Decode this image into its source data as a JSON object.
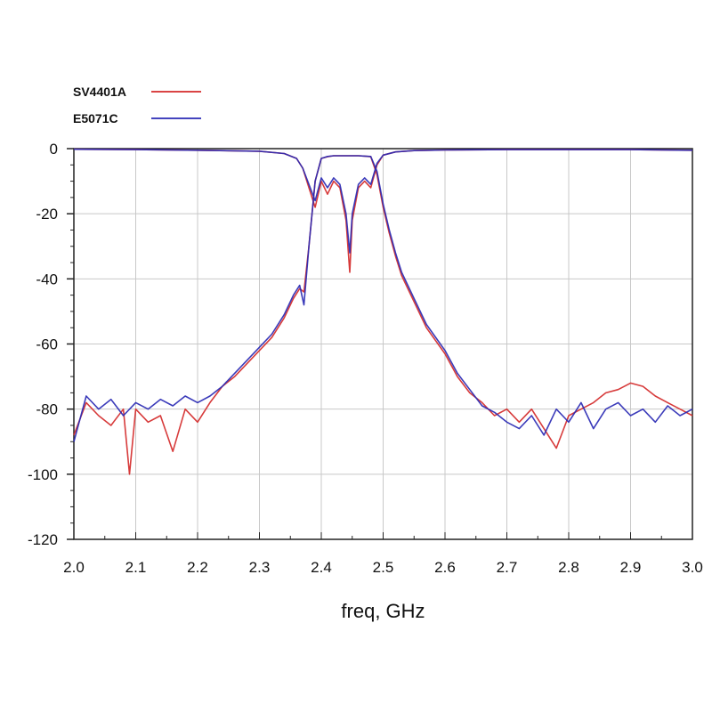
{
  "chart_data": {
    "type": "line",
    "title": "",
    "xlabel": "freq, GHz",
    "ylabel": "",
    "xlim": [
      2.0,
      3.0
    ],
    "ylim": [
      -120,
      0
    ],
    "x_ticks": [
      2.0,
      2.1,
      2.2,
      2.3,
      2.4,
      2.5,
      2.6,
      2.7,
      2.8,
      2.9,
      3.0
    ],
    "x_tick_labels": [
      "2.0",
      "2.1",
      "2.2",
      "2.3",
      "2.4",
      "2.5",
      "2.6",
      "2.7",
      "2.8",
      "2.9",
      "3.0"
    ],
    "y_ticks": [
      0,
      -20,
      -40,
      -60,
      -80,
      -100,
      -120
    ],
    "y_tick_labels": [
      "0",
      "-20",
      "-40",
      "-60",
      "-80",
      "-100",
      "-120"
    ],
    "grid": true,
    "legend_position": "top-left",
    "series": [
      {
        "name": "SV4401A",
        "color": "#d42a2a",
        "traces": [
          {
            "role": "transmission",
            "x": [
              2.0,
              2.02,
              2.04,
              2.06,
              2.08,
              2.09,
              2.1,
              2.12,
              2.14,
              2.16,
              2.18,
              2.2,
              2.22,
              2.24,
              2.26,
              2.28,
              2.3,
              2.32,
              2.34,
              2.355,
              2.365,
              2.372,
              2.38,
              2.39,
              2.4,
              2.41,
              2.42,
              2.43,
              2.44,
              2.45,
              2.46,
              2.47,
              2.48,
              2.49,
              2.5,
              2.51,
              2.52,
              2.53,
              2.55,
              2.57,
              2.6,
              2.62,
              2.64,
              2.66,
              2.68,
              2.7,
              2.72,
              2.74,
              2.76,
              2.78,
              2.8,
              2.82,
              2.84,
              2.86,
              2.88,
              2.9,
              2.92,
              2.94,
              2.96,
              2.98,
              3.0
            ],
            "y": [
              -88,
              -78,
              -82,
              -85,
              -80,
              -100,
              -80,
              -84,
              -82,
              -93,
              -80,
              -84,
              -78,
              -73,
              -70,
              -66,
              -62,
              -58,
              -52,
              -46,
              -43,
              -44,
              -30,
              -10,
              -3,
              -2.5,
              -2.2,
              -2.2,
              -2.2,
              -2.2,
              -2.2,
              -2.3,
              -2.5,
              -8,
              -18,
              -26,
              -33,
              -39,
              -47,
              -55,
              -63,
              -70,
              -75,
              -78,
              -82,
              -80,
              -84,
              -80,
              -86,
              -92,
              -82,
              -80,
              -78,
              -75,
              -74,
              -72,
              -73,
              -76,
              -78,
              -80,
              -82
            ]
          },
          {
            "role": "reflection",
            "x": [
              2.0,
              2.1,
              2.2,
              2.3,
              2.34,
              2.36,
              2.37,
              2.38,
              2.39,
              2.4,
              2.41,
              2.42,
              2.43,
              2.44,
              2.446,
              2.45,
              2.46,
              2.47,
              2.48,
              2.49,
              2.5,
              2.52,
              2.55,
              2.6,
              2.7,
              2.8,
              2.9,
              3.0
            ],
            "y": [
              -0.2,
              -0.3,
              -0.5,
              -0.8,
              -1.5,
              -3,
              -6,
              -12,
              -18,
              -10,
              -14,
              -10,
              -12,
              -22,
              -38,
              -22,
              -12,
              -10,
              -12,
              -5,
              -2,
              -1,
              -0.6,
              -0.4,
              -0.3,
              -0.3,
              -0.3,
              -0.5
            ]
          }
        ]
      },
      {
        "name": "E5071C",
        "color": "#2a2ab4",
        "traces": [
          {
            "role": "transmission",
            "x": [
              2.0,
              2.02,
              2.04,
              2.06,
              2.08,
              2.1,
              2.12,
              2.14,
              2.16,
              2.18,
              2.2,
              2.22,
              2.24,
              2.26,
              2.28,
              2.3,
              2.32,
              2.34,
              2.355,
              2.365,
              2.372,
              2.38,
              2.39,
              2.4,
              2.41,
              2.42,
              2.43,
              2.44,
              2.45,
              2.46,
              2.47,
              2.48,
              2.49,
              2.5,
              2.51,
              2.52,
              2.53,
              2.55,
              2.57,
              2.6,
              2.62,
              2.64,
              2.66,
              2.68,
              2.7,
              2.72,
              2.74,
              2.76,
              2.78,
              2.8,
              2.82,
              2.84,
              2.86,
              2.88,
              2.9,
              2.92,
              2.94,
              2.96,
              2.98,
              3.0
            ],
            "y": [
              -90,
              -76,
              -80,
              -77,
              -82,
              -78,
              -80,
              -77,
              -79,
              -76,
              -78,
              -76,
              -73,
              -69,
              -65,
              -61,
              -57,
              -51,
              -45,
              -42,
              -48,
              -30,
              -10,
              -3,
              -2.4,
              -2.2,
              -2.2,
              -2.2,
              -2.2,
              -2.2,
              -2.3,
              -2.4,
              -7,
              -17,
              -25,
              -32,
              -38,
              -46,
              -54,
              -62,
              -69,
              -74,
              -79,
              -81,
              -84,
              -86,
              -82,
              -88,
              -80,
              -84,
              -78,
              -86,
              -80,
              -78,
              -82,
              -80,
              -84,
              -79,
              -82,
              -80
            ]
          },
          {
            "role": "reflection",
            "x": [
              2.0,
              2.1,
              2.2,
              2.3,
              2.34,
              2.36,
              2.37,
              2.38,
              2.39,
              2.4,
              2.41,
              2.42,
              2.43,
              2.44,
              2.446,
              2.45,
              2.46,
              2.47,
              2.48,
              2.49,
              2.5,
              2.52,
              2.55,
              2.6,
              2.7,
              2.8,
              2.9,
              3.0
            ],
            "y": [
              -0.2,
              -0.3,
              -0.5,
              -0.8,
              -1.5,
              -3,
              -6,
              -11,
              -16,
              -9,
              -12,
              -9,
              -11,
              -20,
              -32,
              -20,
              -11,
              -9,
              -11,
              -4.5,
              -2,
              -1,
              -0.6,
              -0.4,
              -0.3,
              -0.3,
              -0.3,
              -0.5
            ]
          }
        ]
      }
    ]
  }
}
